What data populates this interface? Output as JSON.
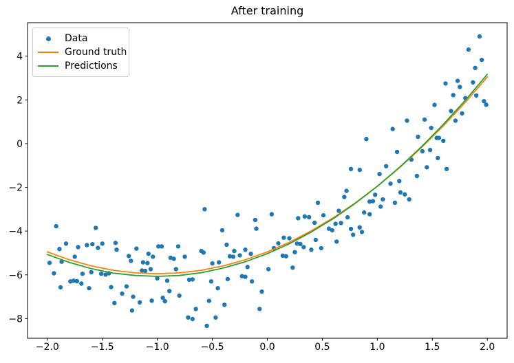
{
  "title": "After training",
  "chart_data": {
    "type": "scatter",
    "title": "After training",
    "xlabel": "",
    "ylabel": "",
    "xlim": [
      -2.18,
      2.18
    ],
    "ylim": [
      -8.9,
      5.53
    ],
    "grid": false,
    "legend_position": "upper left",
    "x_ticks": [
      -2.0,
      -1.5,
      -1.0,
      -0.5,
      0.0,
      0.5,
      1.0,
      1.5,
      2.0
    ],
    "x_tick_labels": [
      "−2.0",
      "−1.5",
      "−1.0",
      "−0.5",
      "0.0",
      "0.5",
      "1.0",
      "1.5",
      "2.0"
    ],
    "y_ticks": [
      4,
      2,
      0,
      -2,
      -4,
      -6,
      -8
    ],
    "y_tick_labels": [
      "4",
      "2",
      "0",
      "−2",
      "−4",
      "−6",
      "−8"
    ],
    "axis_color": "#000000",
    "background_color": "#ffffff",
    "series": [
      {
        "name": "Data",
        "type": "scatter",
        "color": "#1f77b4",
        "marker": "dot",
        "points": [
          [
            -1.98,
            -5.45
          ],
          [
            -1.87,
            -5.4
          ],
          [
            -1.92,
            -3.78
          ],
          [
            -1.56,
            -3.85
          ],
          [
            -1.89,
            -4.82
          ],
          [
            -1.83,
            -4.57
          ],
          [
            -1.72,
            -4.73
          ],
          [
            -1.64,
            -4.64
          ],
          [
            -1.59,
            -4.6
          ],
          [
            -1.54,
            -4.77
          ],
          [
            -1.5,
            -4.57
          ],
          [
            -1.75,
            -5.17
          ],
          [
            -1.94,
            -5.93
          ],
          [
            -1.68,
            -5.95
          ],
          [
            -1.6,
            -5.88
          ],
          [
            -1.51,
            -5.95
          ],
          [
            -1.47,
            -5.99
          ],
          [
            -1.44,
            -5.93
          ],
          [
            -1.79,
            -6.3
          ],
          [
            -1.76,
            -6.27
          ],
          [
            -1.73,
            -6.29
          ],
          [
            -1.69,
            -6.4
          ],
          [
            -1.88,
            -6.57
          ],
          [
            -1.62,
            -6.61
          ],
          [
            -1.42,
            -6.56
          ],
          [
            -1.32,
            -6.86
          ],
          [
            -1.39,
            -7.29
          ],
          [
            -1.38,
            -4.54
          ],
          [
            -1.37,
            -4.85
          ],
          [
            -1.26,
            -5.14
          ],
          [
            -1.24,
            -5.36
          ],
          [
            -1.19,
            -4.8
          ],
          [
            -1.08,
            -5.04
          ],
          [
            -1.04,
            -5.17
          ],
          [
            -0.99,
            -4.7
          ],
          [
            -0.96,
            -4.7
          ],
          [
            -1.13,
            -5.43
          ],
          [
            -1.09,
            -5.46
          ],
          [
            -1.14,
            -5.8
          ],
          [
            -1.11,
            -5.82
          ],
          [
            -1.06,
            -5.74
          ],
          [
            -0.88,
            -5.22
          ],
          [
            -0.85,
            -5.27
          ],
          [
            -0.81,
            -4.7
          ],
          [
            -0.75,
            -5.17
          ],
          [
            -0.83,
            -5.74
          ],
          [
            -1.0,
            -6.16
          ],
          [
            -0.91,
            -6.27
          ],
          [
            -1.28,
            -6.53
          ],
          [
            -1.22,
            -7.0
          ],
          [
            -1.16,
            -7.26
          ],
          [
            -1.23,
            -7.63
          ],
          [
            -1.05,
            -7.18
          ],
          [
            -0.95,
            -7.05
          ],
          [
            -0.93,
            -7.21
          ],
          [
            -0.89,
            -6.74
          ],
          [
            -0.8,
            -6.95
          ],
          [
            -0.71,
            -6.22
          ],
          [
            -0.68,
            -6.21
          ],
          [
            -0.72,
            -7.95
          ],
          [
            -0.68,
            -8.02
          ],
          [
            -0.41,
            -3.96
          ],
          [
            -0.57,
            -3.0
          ],
          [
            -0.27,
            -3.26
          ],
          [
            -0.11,
            -3.49
          ],
          [
            -0.1,
            -3.89
          ],
          [
            -0.37,
            -4.62
          ],
          [
            -0.6,
            -4.91
          ],
          [
            -0.58,
            -4.98
          ],
          [
            -0.3,
            -4.91
          ],
          [
            -0.2,
            -4.85
          ],
          [
            -0.34,
            -5.15
          ],
          [
            -0.31,
            -5.17
          ],
          [
            -0.25,
            -5.11
          ],
          [
            -0.15,
            -5.04
          ],
          [
            -0.5,
            -5.48
          ],
          [
            -0.44,
            -5.43
          ],
          [
            -0.18,
            -5.64
          ],
          [
            -0.51,
            -6.3
          ],
          [
            -0.36,
            -6.19
          ],
          [
            -0.23,
            -6.06
          ],
          [
            -0.2,
            -6.09
          ],
          [
            -0.14,
            -6.3
          ],
          [
            -0.45,
            -6.61
          ],
          [
            -0.05,
            -6.77
          ],
          [
            -0.53,
            -7.19
          ],
          [
            -0.39,
            -7.37
          ],
          [
            -0.65,
            -7.56
          ],
          [
            -0.07,
            -7.56
          ],
          [
            -0.47,
            -7.95
          ],
          [
            -0.55,
            -8.33
          ],
          [
            0.04,
            -3.23
          ],
          [
            0.28,
            -3.41
          ],
          [
            0.34,
            -3.33
          ],
          [
            0.38,
            -3.36
          ],
          [
            0.43,
            -3.62
          ],
          [
            0.46,
            -2.7
          ],
          [
            0.51,
            -3.28
          ],
          [
            0.62,
            -3.67
          ],
          [
            0.65,
            -3.07
          ],
          [
            0.72,
            -2.16
          ],
          [
            0.7,
            -2.44
          ],
          [
            0.73,
            -3.37
          ],
          [
            0.67,
            -3.63
          ],
          [
            0.01,
            -5.74
          ],
          [
            0.06,
            -4.78
          ],
          [
            0.15,
            -4.3
          ],
          [
            0.2,
            -4.33
          ],
          [
            0.1,
            -4.56
          ],
          [
            0.27,
            -4.57
          ],
          [
            0.3,
            -4.59
          ],
          [
            0.33,
            -4.73
          ],
          [
            0.4,
            -4.85
          ],
          [
            0.25,
            -4.96
          ],
          [
            0.14,
            -5.12
          ],
          [
            0.17,
            -5.15
          ],
          [
            0.23,
            -5.67
          ],
          [
            0.44,
            -4.4
          ],
          [
            0.49,
            -4.78
          ],
          [
            0.63,
            -4.48
          ],
          [
            0.56,
            -3.89
          ],
          [
            0.59,
            -3.96
          ],
          [
            0.78,
            -4.17
          ],
          [
            0.76,
            -3.9
          ],
          [
            0.84,
            -3.83
          ],
          [
            0.86,
            -4.04
          ],
          [
            0.88,
            -3.15
          ],
          [
            0.93,
            -3.23
          ],
          [
            0.93,
            -2.65
          ],
          [
            0.96,
            -2.63
          ],
          [
            1.05,
            -2.55
          ],
          [
            1.03,
            -2.88
          ],
          [
            0.9,
            0.21
          ],
          [
            0.84,
            -1.2
          ],
          [
            0.76,
            -1.16
          ],
          [
            0.98,
            -2.34
          ],
          [
            1.02,
            -1.39
          ],
          [
            1.08,
            -1.03
          ],
          [
            1.21,
            -2.23
          ],
          [
            1.25,
            -2.32
          ],
          [
            1.29,
            -2.55
          ],
          [
            1.16,
            -2.7
          ],
          [
            1.14,
            0.67
          ],
          [
            1.18,
            -0.38
          ],
          [
            1.2,
            -1.71
          ],
          [
            1.12,
            -1.83
          ],
          [
            1.27,
            1.05
          ],
          [
            1.31,
            -0.73
          ],
          [
            1.36,
            -1.48
          ],
          [
            1.37,
            0.31
          ],
          [
            1.41,
            -0.35
          ],
          [
            1.43,
            1.1
          ],
          [
            1.45,
            -1.08
          ],
          [
            1.48,
            -0.29
          ],
          [
            1.49,
            0.72
          ],
          [
            1.52,
            1.77
          ],
          [
            1.54,
            0.26
          ],
          [
            1.56,
            0.26
          ],
          [
            1.55,
            -0.66
          ],
          [
            1.6,
            0.13
          ],
          [
            1.63,
            -1.16
          ],
          [
            1.62,
            2.75
          ],
          [
            1.67,
            1.49
          ],
          [
            1.69,
            2.22
          ],
          [
            1.71,
            1.05
          ],
          [
            1.73,
            2.87
          ],
          [
            1.75,
            2.59
          ],
          [
            1.77,
            1.38
          ],
          [
            1.8,
            2.08
          ],
          [
            1.83,
            4.3
          ],
          [
            1.87,
            2.8
          ],
          [
            1.89,
            3.46
          ],
          [
            1.9,
            2.2
          ],
          [
            1.93,
            4.9
          ],
          [
            1.95,
            3.83
          ],
          [
            1.97,
            1.94
          ],
          [
            1.99,
            1.78
          ]
        ]
      },
      {
        "name": "Ground truth",
        "type": "line",
        "color": "#ff7f0e",
        "points": [
          [
            -2.0,
            -4.95
          ],
          [
            -1.8,
            -5.31
          ],
          [
            -1.6,
            -5.59
          ],
          [
            -1.4,
            -5.79
          ],
          [
            -1.2,
            -5.91
          ],
          [
            -1.0,
            -5.95
          ],
          [
            -0.8,
            -5.91
          ],
          [
            -0.6,
            -5.79
          ],
          [
            -0.4,
            -5.59
          ],
          [
            -0.2,
            -5.31
          ],
          [
            0.0,
            -4.95
          ],
          [
            0.2,
            -4.51
          ],
          [
            0.4,
            -3.99
          ],
          [
            0.6,
            -3.39
          ],
          [
            0.8,
            -2.71
          ],
          [
            1.0,
            -1.95
          ],
          [
            1.2,
            -1.11
          ],
          [
            1.4,
            -0.19
          ],
          [
            1.6,
            0.81
          ],
          [
            1.8,
            1.89
          ],
          [
            2.0,
            3.05
          ]
        ]
      },
      {
        "name": "Predictions",
        "type": "line",
        "color": "#2ca02c",
        "points": [
          [
            -2.0,
            -5.07
          ],
          [
            -1.8,
            -5.43
          ],
          [
            -1.6,
            -5.72
          ],
          [
            -1.4,
            -5.92
          ],
          [
            -1.2,
            -6.03
          ],
          [
            -1.0,
            -6.07
          ],
          [
            -0.8,
            -6.03
          ],
          [
            -0.6,
            -5.9
          ],
          [
            -0.4,
            -5.69
          ],
          [
            -0.2,
            -5.4
          ],
          [
            0.0,
            -5.03
          ],
          [
            0.2,
            -4.58
          ],
          [
            0.4,
            -4.04
          ],
          [
            0.6,
            -3.43
          ],
          [
            0.8,
            -2.73
          ],
          [
            1.0,
            -1.95
          ],
          [
            1.2,
            -1.09
          ],
          [
            1.4,
            -0.15
          ],
          [
            1.6,
            0.88
          ],
          [
            1.8,
            1.98
          ],
          [
            2.0,
            3.17
          ]
        ]
      }
    ]
  }
}
